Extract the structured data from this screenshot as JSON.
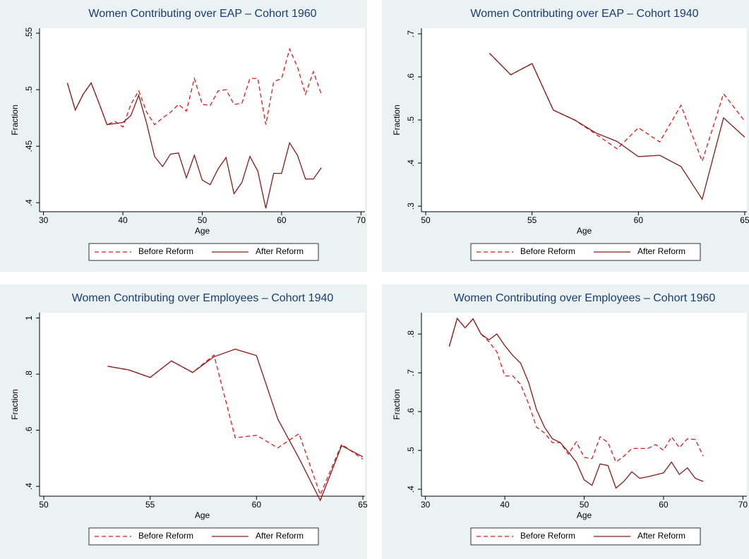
{
  "chart_data": [
    {
      "type": "line",
      "title": "Women Contributing over EAP – Cohort 1960",
      "x_label": "Age",
      "y_label": "Fraction",
      "x": [
        33,
        34,
        35,
        36,
        37,
        38,
        39,
        40,
        41,
        42,
        43,
        44,
        45,
        46,
        47,
        48,
        49,
        50,
        51,
        52,
        53,
        54,
        55,
        56,
        57,
        58,
        59,
        60,
        61,
        62,
        63,
        64,
        65
      ],
      "series": [
        {
          "name": "Before Reform",
          "color": "#e8171e",
          "style": "dashed",
          "values": [
            0.506,
            0.482,
            0.496,
            0.506,
            0.488,
            0.469,
            0.472,
            0.467,
            0.487,
            0.499,
            0.48,
            0.469,
            0.475,
            0.48,
            0.487,
            0.481,
            0.51,
            0.487,
            0.486,
            0.499,
            0.5,
            0.487,
            0.488,
            0.51,
            0.51,
            0.469,
            0.507,
            0.51,
            0.536,
            0.52,
            0.496,
            0.516,
            0.496
          ]
        },
        {
          "name": "After Reform",
          "color": "#8b1a1a",
          "style": "solid",
          "values": [
            0.506,
            0.482,
            0.496,
            0.506,
            0.488,
            0.469,
            0.47,
            0.471,
            0.477,
            0.495,
            0.47,
            0.441,
            0.432,
            0.443,
            0.444,
            0.422,
            0.442,
            0.42,
            0.416,
            0.43,
            0.44,
            0.408,
            0.418,
            0.441,
            0.428,
            0.395,
            0.426,
            0.426,
            0.453,
            0.442,
            0.421,
            0.421,
            0.431
          ]
        }
      ],
      "xlim": [
        29.5,
        70.5
      ],
      "ylim": [
        0.392,
        0.5544
      ],
      "xticks": [
        30,
        40,
        50,
        60,
        70
      ],
      "yticks": [
        {
          "value": 0.4,
          "label": ".4"
        },
        {
          "value": 0.45,
          "label": ".45"
        },
        {
          "value": 0.5,
          "label": ".5"
        },
        {
          "value": 0.55,
          "label": ".55"
        }
      ]
    },
    {
      "type": "line",
      "title": "Women Contributing over EAP – Cohort 1940",
      "x_label": "Age",
      "y_label": "Fraction",
      "x": [
        53,
        54,
        55,
        56,
        57,
        58,
        59,
        60,
        61,
        62,
        63,
        64,
        65
      ],
      "series": [
        {
          "name": "Before Reform",
          "color": "#e8171e",
          "style": "dashed",
          "values": [
            0.655,
            0.605,
            0.631,
            0.523,
            0.5,
            0.467,
            0.433,
            0.482,
            0.449,
            0.534,
            0.404,
            0.561,
            0.497
          ]
        },
        {
          "name": "After Reform",
          "color": "#8b1a1a",
          "style": "solid",
          "values": [
            0.655,
            0.605,
            0.631,
            0.523,
            0.5,
            0.47,
            0.45,
            0.415,
            0.418,
            0.392,
            0.316,
            0.505,
            0.46
          ]
        }
      ],
      "xlim": [
        49.8,
        65.1
      ],
      "ylim": [
        0.287,
        0.713
      ],
      "xticks": [
        50,
        55,
        60,
        65
      ],
      "yticks": [
        {
          "value": 0.3,
          "label": ".3"
        },
        {
          "value": 0.4,
          "label": ".4"
        },
        {
          "value": 0.5,
          "label": ".5"
        },
        {
          "value": 0.6,
          "label": ".6"
        },
        {
          "value": 0.7,
          "label": ".7"
        }
      ]
    },
    {
      "type": "line",
      "title": "Women Contributing over Employees – Cohort 1940",
      "x_label": "Age",
      "y_label": "Fraction",
      "x": [
        53,
        54,
        55,
        56,
        57,
        58,
        59,
        60,
        61,
        62,
        63,
        64,
        65
      ],
      "series": [
        {
          "name": "Before Reform",
          "color": "#e8171e",
          "style": "dashed",
          "values": [
            0.828,
            0.815,
            0.788,
            0.847,
            0.806,
            0.868,
            0.573,
            0.582,
            0.537,
            0.588,
            0.37,
            0.55,
            0.497
          ]
        },
        {
          "name": "After Reform",
          "color": "#8b1a1a",
          "style": "solid",
          "values": [
            0.828,
            0.815,
            0.788,
            0.847,
            0.806,
            0.862,
            0.889,
            0.866,
            0.64,
            0.5,
            0.35,
            0.545,
            0.505
          ]
        }
      ],
      "xlim": [
        49.8,
        65.1
      ],
      "ylim": [
        0.365,
        1.019
      ],
      "xticks": [
        50,
        55,
        60,
        65
      ],
      "yticks": [
        {
          "value": 0.4,
          "label": ".4"
        },
        {
          "value": 0.6,
          "label": ".6"
        },
        {
          "value": 0.8,
          "label": ".8"
        },
        1
      ]
    },
    {
      "type": "line",
      "title": "Women Contributing over Employees – Cohort 1960",
      "x_label": "Age",
      "y_label": "Fraction",
      "x": [
        33,
        34,
        35,
        36,
        37,
        38,
        39,
        40,
        41,
        42,
        43,
        44,
        45,
        46,
        47,
        48,
        49,
        50,
        51,
        52,
        53,
        54,
        55,
        56,
        57,
        58,
        59,
        60,
        61,
        62,
        63,
        64,
        65
      ],
      "series": [
        {
          "name": "Before Reform",
          "color": "#e8171e",
          "style": "dashed",
          "values": [
            0.768,
            0.84,
            0.816,
            0.839,
            0.8,
            0.78,
            0.754,
            0.692,
            0.692,
            0.67,
            0.62,
            0.56,
            0.545,
            0.52,
            0.52,
            0.49,
            0.522,
            0.482,
            0.479,
            0.535,
            0.52,
            0.47,
            0.485,
            0.505,
            0.505,
            0.505,
            0.515,
            0.5,
            0.535,
            0.507,
            0.53,
            0.528,
            0.485
          ]
        },
        {
          "name": "After Reform",
          "color": "#8b1a1a",
          "style": "solid",
          "values": [
            0.768,
            0.84,
            0.816,
            0.839,
            0.8,
            0.785,
            0.8,
            0.77,
            0.745,
            0.725,
            0.675,
            0.605,
            0.56,
            0.53,
            0.52,
            0.496,
            0.47,
            0.424,
            0.41,
            0.465,
            0.461,
            0.403,
            0.42,
            0.445,
            0.428,
            0.432,
            0.437,
            0.442,
            0.47,
            0.438,
            0.455,
            0.428,
            0.42
          ]
        }
      ],
      "xlim": [
        29.5,
        70.5
      ],
      "ylim": [
        0.382,
        0.855
      ],
      "xticks": [
        30,
        40,
        50,
        60,
        70
      ],
      "yticks": [
        {
          "value": 0.4,
          "label": ".4"
        },
        {
          "value": 0.5,
          "label": ".5"
        },
        {
          "value": 0.6,
          "label": ".6"
        },
        {
          "value": 0.7,
          "label": ".7"
        },
        {
          "value": 0.8,
          "label": ".8"
        }
      ]
    }
  ]
}
